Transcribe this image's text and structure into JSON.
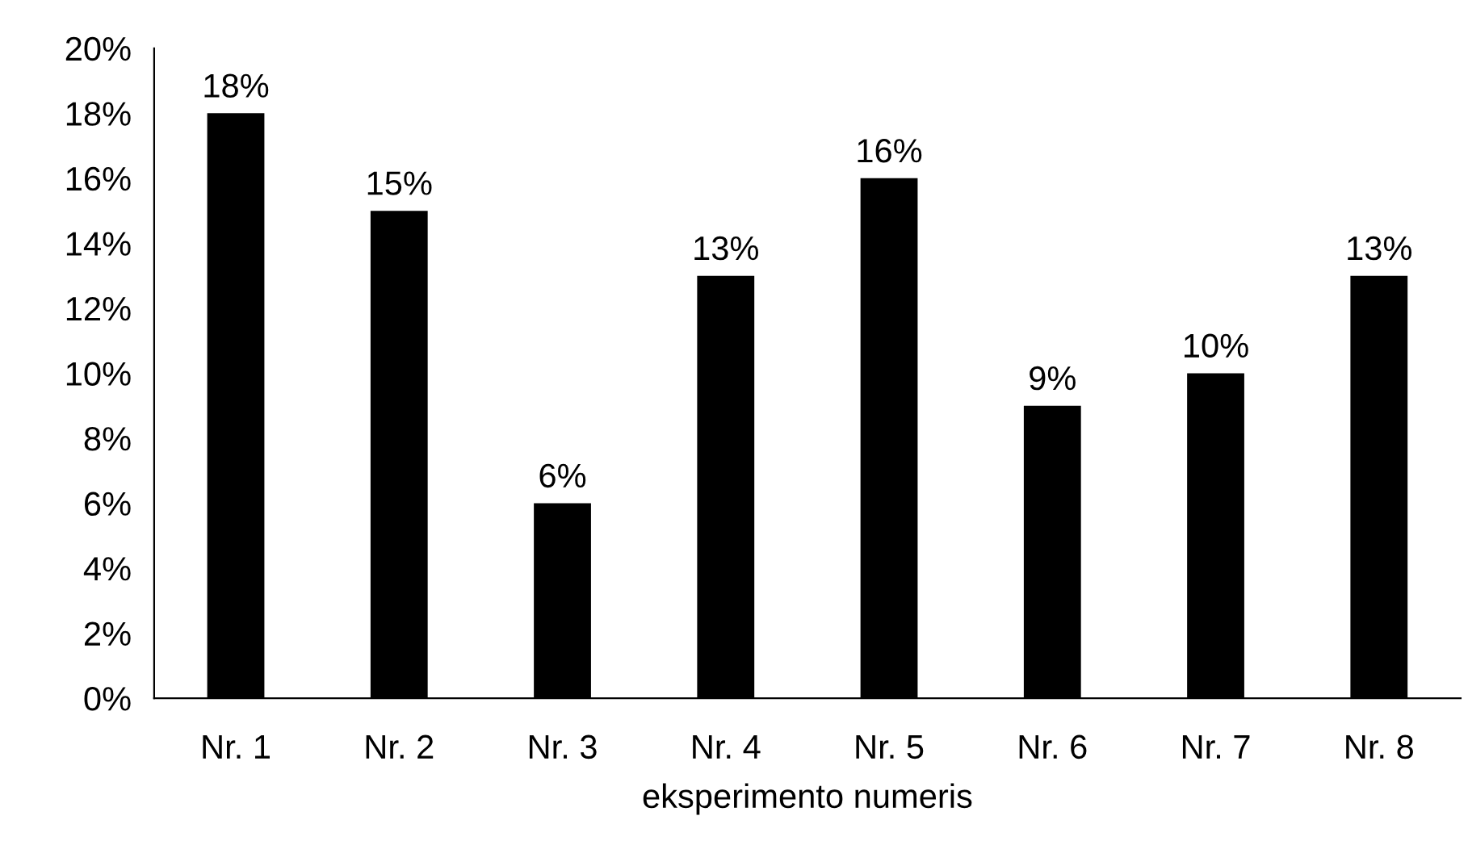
{
  "chart_data": {
    "type": "bar",
    "xlabel": "eksperimento numeris",
    "categories": [
      "Nr. 1",
      "Nr. 2",
      "Nr. 3",
      "Nr. 4",
      "Nr. 5",
      "Nr. 6",
      "Nr. 7",
      "Nr. 8"
    ],
    "values": [
      18,
      15,
      6,
      13,
      16,
      9,
      10,
      13
    ],
    "value_labels": [
      "18%",
      "15%",
      "6%",
      "13%",
      "16%",
      "9%",
      "10%",
      "13%"
    ],
    "color": "#000000",
    "ylim": [
      0,
      20
    ],
    "yticks": [
      {
        "value": 0,
        "label": "0%"
      },
      {
        "value": 2,
        "label": "2%"
      },
      {
        "value": 4,
        "label": "4%"
      },
      {
        "value": 6,
        "label": "6%"
      },
      {
        "value": 8,
        "label": "8%"
      },
      {
        "value": 10,
        "label": "10%"
      },
      {
        "value": 12,
        "label": "12%"
      },
      {
        "value": 14,
        "label": "14%"
      },
      {
        "value": 16,
        "label": "16%"
      },
      {
        "value": 18,
        "label": "18%"
      },
      {
        "value": 20,
        "label": "20%"
      }
    ],
    "grid": false,
    "legend": false
  }
}
